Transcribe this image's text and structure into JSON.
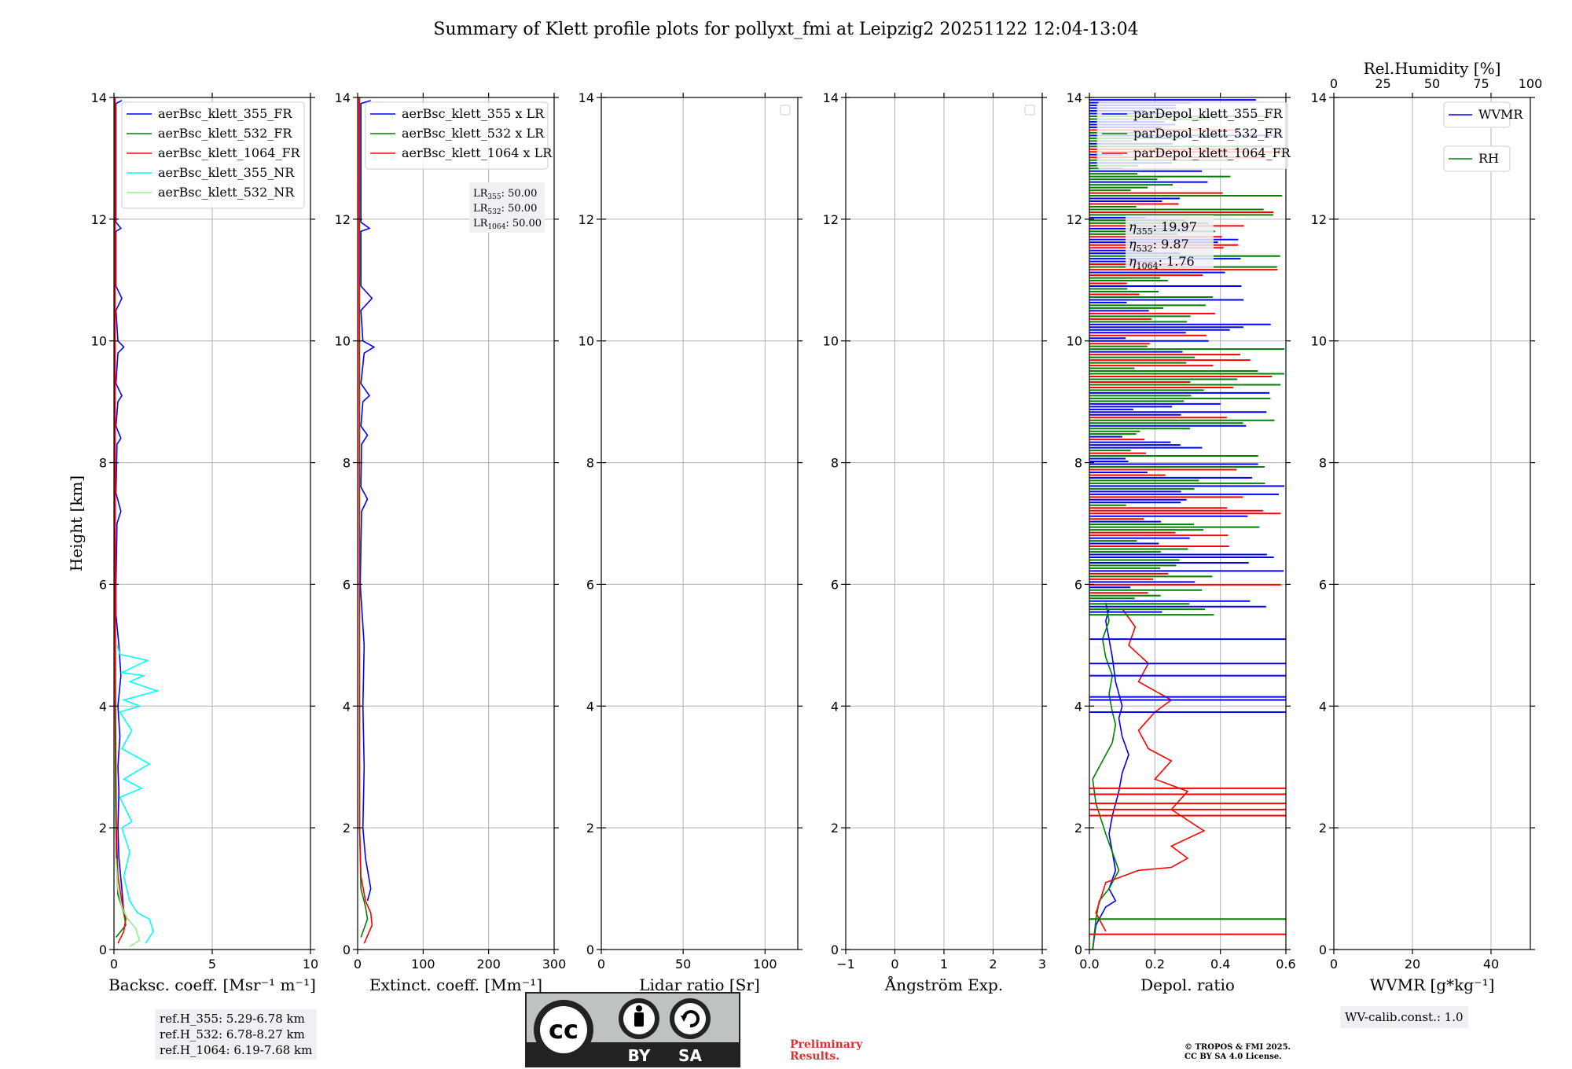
{
  "title": "Summary of Klett profile plots for pollyxt_fmi at Leipzig2 20251122 12:04-13:04",
  "chart_data": [
    {
      "type": "line",
      "name": "backscatter",
      "xlabel": "Backsc. coeff. [Msr⁻¹ m⁻¹]",
      "ylabel": "Height [km]",
      "xlim": [
        0,
        10
      ],
      "ylim": [
        0,
        14
      ],
      "xticks": [
        "0",
        "5",
        "10"
      ],
      "yticks": [
        "0",
        "2",
        "4",
        "6",
        "8",
        "10",
        "12",
        "14"
      ],
      "legend": [
        "aerBsc_klett_355_FR",
        "aerBsc_klett_532_FR",
        "aerBsc_klett_1064_FR",
        "aerBsc_klett_355_NR",
        "aerBsc_klett_532_NR"
      ],
      "series": [
        {
          "name": "aerBsc_klett_355_FR",
          "color": "#0000ff",
          "points": [
            [
              0.5,
              0.6
            ],
            [
              0.4,
              1.0
            ],
            [
              0.25,
              1.5
            ],
            [
              0.2,
              2.0
            ],
            [
              0.25,
              2.6
            ],
            [
              0.2,
              3.0
            ],
            [
              0.3,
              3.5
            ],
            [
              0.2,
              4.0
            ],
            [
              0.35,
              4.5
            ],
            [
              0.25,
              5.0
            ],
            [
              0.1,
              5.5
            ],
            [
              0.1,
              6.0
            ],
            [
              0.15,
              7.0
            ],
            [
              0.35,
              7.2
            ],
            [
              0.1,
              7.5
            ],
            [
              0.15,
              8.3
            ],
            [
              0.35,
              8.4
            ],
            [
              0.1,
              8.6
            ],
            [
              0.2,
              9.0
            ],
            [
              0.4,
              9.1
            ],
            [
              0.1,
              9.3
            ],
            [
              0.2,
              9.8
            ],
            [
              0.5,
              9.9
            ],
            [
              0.2,
              10.0
            ],
            [
              0.1,
              10.5
            ],
            [
              0.4,
              10.7
            ],
            [
              0.1,
              10.9
            ],
            [
              0.1,
              11.8
            ],
            [
              0.35,
              11.85
            ],
            [
              0.1,
              11.95
            ],
            [
              0.1,
              13.9
            ],
            [
              0.4,
              13.95
            ]
          ]
        },
        {
          "name": "aerBsc_klett_532_FR",
          "color": "#008000",
          "points": [
            [
              0.1,
              0.2
            ],
            [
              0.6,
              0.4
            ],
            [
              0.5,
              0.6
            ],
            [
              0.2,
              0.9
            ],
            [
              0.12,
              1.5
            ],
            [
              0.08,
              2.5
            ],
            [
              0.06,
              4.0
            ],
            [
              0.05,
              6.0
            ],
            [
              0.05,
              14.0
            ]
          ]
        },
        {
          "name": "aerBsc_klett_1064_FR",
          "color": "#ff0000",
          "points": [
            [
              0.2,
              0.1
            ],
            [
              0.5,
              0.3
            ],
            [
              0.6,
              0.5
            ],
            [
              0.4,
              0.8
            ],
            [
              0.2,
              1.2
            ],
            [
              0.12,
              2.0
            ],
            [
              0.08,
              4.0
            ],
            [
              0.05,
              8.0
            ],
            [
              0.04,
              14.0
            ]
          ]
        },
        {
          "name": "aerBsc_klett_355_NR",
          "color": "#00ffff",
          "points": [
            [
              1.6,
              0.1
            ],
            [
              2.0,
              0.3
            ],
            [
              1.8,
              0.5
            ],
            [
              1.2,
              0.6
            ],
            [
              0.8,
              0.8
            ],
            [
              0.5,
              1.2
            ],
            [
              0.8,
              1.6
            ],
            [
              0.4,
              2.0
            ],
            [
              0.9,
              2.1
            ],
            [
              0.3,
              2.5
            ],
            [
              1.4,
              2.65
            ],
            [
              0.5,
              2.8
            ],
            [
              1.8,
              3.05
            ],
            [
              0.4,
              3.3
            ],
            [
              0.9,
              3.6
            ],
            [
              0.3,
              3.9
            ],
            [
              1.3,
              4.0
            ],
            [
              0.5,
              4.1
            ],
            [
              2.2,
              4.25
            ],
            [
              0.8,
              4.4
            ],
            [
              1.5,
              4.5
            ],
            [
              0.4,
              4.55
            ],
            [
              1.7,
              4.75
            ],
            [
              0.3,
              4.85
            ],
            [
              0.15,
              5.0
            ]
          ]
        },
        {
          "name": "aerBsc_klett_532_NR",
          "color": "#90ee90",
          "points": [
            [
              0.8,
              0.05
            ],
            [
              1.3,
              0.15
            ],
            [
              1.1,
              0.35
            ],
            [
              0.7,
              0.5
            ],
            [
              0.4,
              0.7
            ],
            [
              0.2,
              1.0
            ],
            [
              0.1,
              1.5
            ]
          ]
        }
      ],
      "ref_heights": [
        "ref.H_355: 5.29-6.78 km",
        "ref.H_532: 6.78-8.27 km",
        "ref.H_1064: 6.19-7.68 km"
      ]
    },
    {
      "type": "line",
      "name": "extinction",
      "xlabel": "Extinct. coeff. [Mm⁻¹]",
      "xlim": [
        0,
        300
      ],
      "ylim": [
        0,
        14
      ],
      "xticks": [
        "0",
        "100",
        "200",
        "300"
      ],
      "yticks": [
        "0",
        "2",
        "4",
        "6",
        "8",
        "10",
        "12",
        "14"
      ],
      "legend": [
        "aerBsc_klett_355 x LR",
        "aerBsc_klett_532 x LR",
        "aerBsc_klett_1064 x LR"
      ],
      "lidar_ratios": [
        {
          "name": "LR",
          "sub": "355",
          "value": ": 50.00"
        },
        {
          "name": "LR",
          "sub": "532",
          "value": ": 50.00"
        },
        {
          "name": "LR",
          "sub": "1064",
          "value": ": 50.00"
        }
      ],
      "series": [
        {
          "name": "aerBsc_klett_355 x LR",
          "color": "#0000ff",
          "points": [
            [
              15,
              0.8
            ],
            [
              20,
              1.0
            ],
            [
              12,
              1.5
            ],
            [
              8,
              2.0
            ],
            [
              10,
              3.0
            ],
            [
              8,
              4.0
            ],
            [
              10,
              5.0
            ],
            [
              4,
              6.0
            ],
            [
              6,
              7.2
            ],
            [
              15,
              7.4
            ],
            [
              5,
              7.6
            ],
            [
              6,
              8.3
            ],
            [
              15,
              8.45
            ],
            [
              5,
              8.6
            ],
            [
              8,
              9.0
            ],
            [
              18,
              9.1
            ],
            [
              5,
              9.3
            ],
            [
              10,
              9.8
            ],
            [
              25,
              9.9
            ],
            [
              8,
              10.0
            ],
            [
              5,
              10.5
            ],
            [
              22,
              10.7
            ],
            [
              5,
              10.9
            ],
            [
              5,
              11.8
            ],
            [
              18,
              11.85
            ],
            [
              5,
              11.95
            ],
            [
              5,
              13.9
            ],
            [
              20,
              13.95
            ]
          ]
        },
        {
          "name": "aerBsc_klett_532 x LR",
          "color": "#008000",
          "points": [
            [
              5,
              0.2
            ],
            [
              15,
              0.5
            ],
            [
              12,
              0.7
            ],
            [
              5,
              1.0
            ],
            [
              3,
              2.0
            ],
            [
              3,
              14.0
            ]
          ]
        },
        {
          "name": "aerBsc_klett_1064 x LR",
          "color": "#ff0000",
          "points": [
            [
              10,
              0.1
            ],
            [
              22,
              0.4
            ],
            [
              20,
              0.6
            ],
            [
              12,
              0.8
            ],
            [
              5,
              1.2
            ],
            [
              3,
              2.0
            ],
            [
              2,
              14.0
            ]
          ]
        }
      ]
    },
    {
      "type": "line",
      "name": "lidar_ratio",
      "xlabel": "Lidar ratio [Sr]",
      "xlim": [
        0,
        120
      ],
      "ylim": [
        0,
        14
      ],
      "xticks": [
        "0",
        "50",
        "100"
      ],
      "yticks": [
        "0",
        "2",
        "4",
        "6",
        "8",
        "10",
        "12",
        "14"
      ],
      "series": []
    },
    {
      "type": "line",
      "name": "angstrom",
      "xlabel": "Ångström Exp.",
      "xlim": [
        -1,
        3
      ],
      "ylim": [
        0,
        14
      ],
      "xticks": [
        "−1",
        "0",
        "1",
        "2",
        "3"
      ],
      "yticks": [
        "0",
        "2",
        "4",
        "6",
        "8",
        "10",
        "12",
        "14"
      ],
      "series": []
    },
    {
      "type": "line",
      "name": "depolarization",
      "xlabel": "Depol. ratio",
      "xlim": [
        0,
        0.6
      ],
      "ylim": [
        0,
        14
      ],
      "xticks": [
        "0.0",
        "0.2",
        "0.4",
        "0.6"
      ],
      "yticks": [
        "0",
        "2",
        "4",
        "6",
        "8",
        "10",
        "12",
        "14"
      ],
      "legend": [
        "parDepol_klett_355_FR",
        "parDepol_klett_532_FR",
        "parDepol_klett_1064_FR"
      ],
      "eta": [
        {
          "sub": "355",
          "value": ": 19.97"
        },
        {
          "sub": "532",
          "value": ": 9.87"
        },
        {
          "sub": "1064",
          "value": ": 1.76"
        }
      ],
      "series": [
        {
          "name": "parDepol_klett_355_FR",
          "color": "#0000ff",
          "points": [
            [
              0.01,
              0.0
            ],
            [
              0.02,
              0.4
            ],
            [
              0.05,
              0.7
            ],
            [
              0.08,
              0.8
            ],
            [
              0.06,
              1.0
            ],
            [
              0.08,
              1.3
            ],
            [
              0.07,
              1.6
            ],
            [
              0.06,
              1.9
            ],
            [
              0.07,
              2.2
            ],
            [
              0.09,
              2.6
            ],
            [
              0.1,
              2.9
            ],
            [
              0.12,
              3.2
            ],
            [
              0.1,
              3.5
            ],
            [
              0.09,
              3.8
            ],
            [
              0.1,
              4.0
            ],
            [
              0.08,
              4.4
            ],
            [
              0.07,
              4.8
            ],
            [
              0.06,
              5.1
            ],
            [
              0.05,
              5.4
            ],
            [
              0.06,
              5.6
            ]
          ]
        },
        {
          "name": "parDepol_klett_532_FR",
          "color": "#008000",
          "points": [
            [
              0.01,
              0.0
            ],
            [
              0.02,
              0.5
            ],
            [
              0.03,
              0.8
            ],
            [
              0.06,
              1.0
            ],
            [
              0.09,
              1.3
            ],
            [
              0.07,
              1.6
            ],
            [
              0.05,
              1.9
            ],
            [
              0.02,
              2.4
            ],
            [
              0.01,
              2.8
            ],
            [
              0.04,
              3.1
            ],
            [
              0.07,
              3.4
            ],
            [
              0.08,
              3.7
            ],
            [
              0.07,
              3.9
            ],
            [
              0.06,
              4.2
            ],
            [
              0.07,
              4.5
            ],
            [
              0.05,
              4.8
            ],
            [
              0.04,
              5.1
            ],
            [
              0.06,
              5.4
            ],
            [
              0.05,
              5.7
            ]
          ]
        },
        {
          "name": "parDepol_klett_1064_FR",
          "color": "#ff0000",
          "points": [
            [
              0.05,
              0.3
            ],
            [
              0.02,
              0.6
            ],
            [
              0.05,
              1.1
            ],
            [
              0.15,
              1.3
            ],
            [
              0.25,
              1.35
            ],
            [
              0.3,
              1.5
            ],
            [
              0.25,
              1.7
            ],
            [
              0.35,
              1.95
            ],
            [
              0.25,
              2.3
            ],
            [
              0.3,
              2.6
            ],
            [
              0.2,
              2.8
            ],
            [
              0.25,
              3.1
            ],
            [
              0.18,
              3.3
            ],
            [
              0.15,
              3.6
            ],
            [
              0.2,
              3.9
            ],
            [
              0.25,
              4.1
            ],
            [
              0.15,
              4.4
            ],
            [
              0.18,
              4.7
            ],
            [
              0.12,
              5.0
            ],
            [
              0.14,
              5.3
            ],
            [
              0.1,
              5.6
            ]
          ]
        }
      ]
    },
    {
      "type": "line",
      "name": "water_vapour",
      "xlabel": "WVMR [g*kg⁻¹]",
      "top_xlabel": "Rel.Humidity [%]",
      "xlim": [
        0,
        50
      ],
      "ylim": [
        0,
        14
      ],
      "top_xlim": [
        0,
        100
      ],
      "xticks": [
        "0",
        "20",
        "40"
      ],
      "top_xticks": [
        "0",
        "25",
        "50",
        "75",
        "100"
      ],
      "yticks": [
        "0",
        "2",
        "4",
        "6",
        "8",
        "10",
        "12",
        "14"
      ],
      "legend": [
        "WVMR",
        "RH"
      ],
      "series": [],
      "calib": "WV-calib.const.: 1.0"
    }
  ],
  "footer": {
    "cc_symbol": "cc",
    "cc_by": "BY",
    "cc_sa": "SA",
    "preliminary_1": "Preliminary",
    "preliminary_2": "Results.",
    "copyright_1": "© TROPOS & FMI 2025.",
    "copyright_2": "CC BY SA 4.0 License."
  }
}
